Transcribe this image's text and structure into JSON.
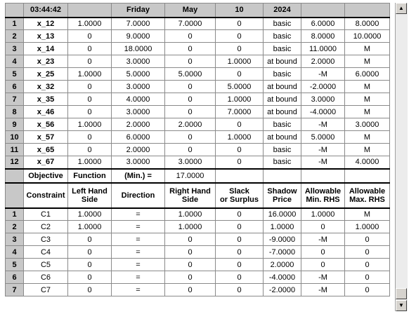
{
  "header": [
    "03:44:42",
    "",
    "Friday",
    "May",
    "10",
    "2024",
    "",
    ""
  ],
  "variables": [
    {
      "n": "1",
      "c": [
        "x_12",
        "1.0000",
        "7.0000",
        "7.0000",
        "0",
        "basic",
        "6.0000",
        "8.0000"
      ]
    },
    {
      "n": "2",
      "c": [
        "x_13",
        "0",
        "9.0000",
        "0",
        "0",
        "basic",
        "8.0000",
        "10.0000"
      ]
    },
    {
      "n": "3",
      "c": [
        "x_14",
        "0",
        "18.0000",
        "0",
        "0",
        "basic",
        "11.0000",
        "M"
      ]
    },
    {
      "n": "4",
      "c": [
        "x_23",
        "0",
        "3.0000",
        "0",
        "1.0000",
        "at bound",
        "2.0000",
        "M"
      ]
    },
    {
      "n": "5",
      "c": [
        "x_25",
        "1.0000",
        "5.0000",
        "5.0000",
        "0",
        "basic",
        "-M",
        "6.0000"
      ]
    },
    {
      "n": "6",
      "c": [
        "x_32",
        "0",
        "3.0000",
        "0",
        "5.0000",
        "at bound",
        "-2.0000",
        "M"
      ]
    },
    {
      "n": "7",
      "c": [
        "x_35",
        "0",
        "4.0000",
        "0",
        "1.0000",
        "at bound",
        "3.0000",
        "M"
      ]
    },
    {
      "n": "8",
      "c": [
        "x_46",
        "0",
        "3.0000",
        "0",
        "7.0000",
        "at bound",
        "-4.0000",
        "M"
      ]
    },
    {
      "n": "9",
      "c": [
        "x_56",
        "1.0000",
        "2.0000",
        "2.0000",
        "0",
        "basic",
        "-M",
        "3.0000"
      ]
    },
    {
      "n": "10",
      "c": [
        "x_57",
        "0",
        "6.0000",
        "0",
        "1.0000",
        "at bound",
        "5.0000",
        "M"
      ]
    },
    {
      "n": "11",
      "c": [
        "x_65",
        "0",
        "2.0000",
        "0",
        "0",
        "basic",
        "-M",
        "M"
      ]
    },
    {
      "n": "12",
      "c": [
        "x_67",
        "1.0000",
        "3.0000",
        "3.0000",
        "0",
        "basic",
        "-M",
        "4.0000"
      ]
    }
  ],
  "objective": {
    "c1": "Objective",
    "c2": "Function",
    "c3": "(Min.) =",
    "c4": "17.0000"
  },
  "constraint_headers": [
    [
      "Constraint"
    ],
    [
      "Left Hand",
      "Side"
    ],
    [
      "Direction"
    ],
    [
      "Right Hand",
      "Side"
    ],
    [
      "Slack",
      "or Surplus"
    ],
    [
      "Shadow",
      "Price"
    ],
    [
      "Allowable",
      "Min. RHS"
    ],
    [
      "Allowable",
      "Max. RHS"
    ]
  ],
  "constraints": [
    {
      "n": "1",
      "c": [
        "C1",
        "1.0000",
        "=",
        "1.0000",
        "0",
        "16.0000",
        "1.0000",
        "M"
      ]
    },
    {
      "n": "2",
      "c": [
        "C2",
        "1.0000",
        "=",
        "1.0000",
        "0",
        "1.0000",
        "0",
        "1.0000"
      ]
    },
    {
      "n": "3",
      "c": [
        "C3",
        "0",
        "=",
        "0",
        "0",
        "-9.0000",
        "-M",
        "0"
      ]
    },
    {
      "n": "4",
      "c": [
        "C4",
        "0",
        "=",
        "0",
        "0",
        "-7.0000",
        "0",
        "0"
      ]
    },
    {
      "n": "5",
      "c": [
        "C5",
        "0",
        "=",
        "0",
        "0",
        "2.0000",
        "0",
        "0"
      ]
    },
    {
      "n": "6",
      "c": [
        "C6",
        "0",
        "=",
        "0",
        "0",
        "-4.0000",
        "-M",
        "0"
      ]
    },
    {
      "n": "7",
      "c": [
        "C7",
        "0",
        "=",
        "0",
        "0",
        "-2.0000",
        "-M",
        "0"
      ]
    }
  ],
  "scrollbar": {
    "up": "▲",
    "down": "▼"
  }
}
